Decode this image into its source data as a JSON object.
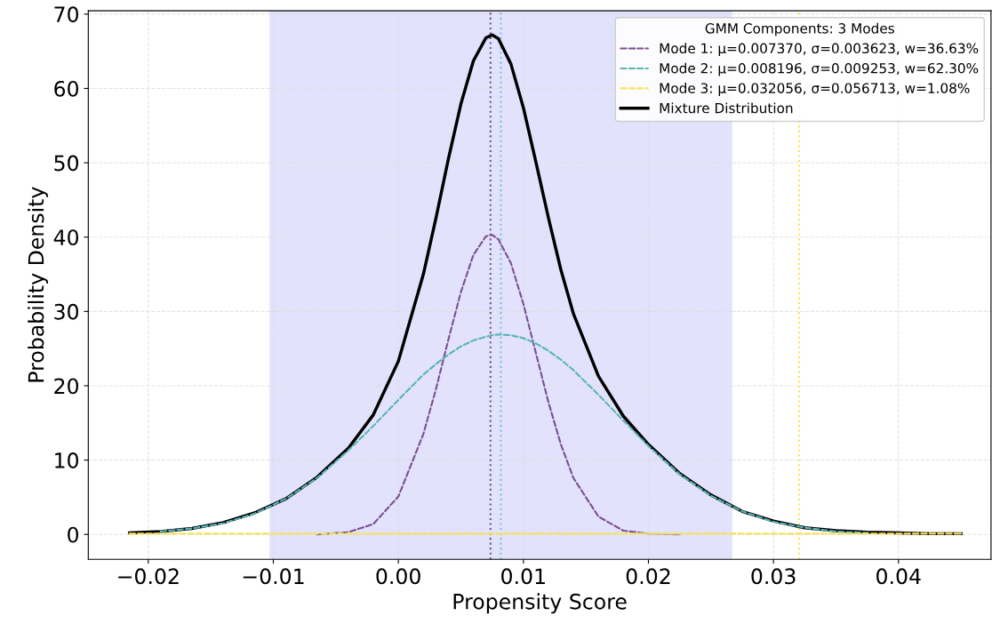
{
  "chart_data": {
    "type": "line",
    "xlabel": "Propensity Score",
    "ylabel": "Probability Density",
    "legend_title": "GMM Components: 3 Modes",
    "x": [
      -0.0215,
      -0.019,
      -0.0165,
      -0.014,
      -0.0115,
      -0.009,
      -0.0065,
      -0.004,
      -0.002,
      0.0,
      0.002,
      0.003,
      0.004,
      0.005,
      0.006,
      0.007,
      0.0075,
      0.008,
      0.009,
      0.01,
      0.011,
      0.012,
      0.013,
      0.014,
      0.016,
      0.018,
      0.02,
      0.0225,
      0.025,
      0.0275,
      0.03,
      0.0325,
      0.035,
      0.0375,
      0.04,
      0.0425,
      0.045
    ],
    "series": [
      {
        "name": "Mode 1: μ=0.007370, σ=0.003623, w=36.63%",
        "color": "#7b4f8e",
        "line_style": "dashed",
        "values": [
          null,
          null,
          null,
          null,
          null,
          null,
          0,
          0.3,
          1.4,
          5.1,
          13.5,
          19.5,
          26.2,
          32.6,
          37.6,
          40.1,
          40.3,
          39.7,
          36.5,
          31.0,
          24.4,
          17.8,
          12.1,
          7.6,
          2.4,
          0.5,
          0.1,
          0,
          null,
          null,
          null,
          null,
          null,
          null,
          null,
          null,
          null
        ]
      },
      {
        "name": "Mode 2: μ=0.008196, σ=0.009253, w=62.30%",
        "color": "#5ab4b4",
        "line_style": "dashed",
        "values": [
          null,
          0.4,
          0.8,
          1.5,
          2.8,
          4.8,
          7.6,
          11.3,
          14.6,
          18.1,
          21.5,
          22.9,
          24.2,
          25.3,
          26.1,
          26.6,
          26.8,
          26.9,
          26.8,
          26.4,
          25.7,
          24.7,
          23.5,
          22.1,
          18.8,
          15.3,
          11.9,
          8.1,
          5.2,
          3.1,
          1.7,
          0.9,
          0.4,
          0.2,
          null,
          null,
          null
        ]
      },
      {
        "name": "Mode 3: μ=0.032056, σ=0.056713, w=1.08%",
        "color": "#f5e35a",
        "line_style": "dashed",
        "values": [
          0.1,
          0.1,
          0.1,
          0.1,
          0.1,
          0.1,
          0.1,
          0.1,
          0.1,
          0.1,
          0.1,
          0.1,
          0.1,
          0.1,
          0.1,
          0.1,
          0.1,
          0.1,
          0.1,
          0.1,
          0.1,
          0.1,
          0.1,
          0.1,
          0.1,
          0.1,
          0.1,
          0.1,
          0.1,
          0.1,
          0.1,
          0.1,
          0.1,
          0.1,
          0.1,
          0.1,
          0.1
        ]
      },
      {
        "name": "Mixture Distribution",
        "color": "#000000",
        "line_style": "solid",
        "values": [
          0.2,
          0.4,
          0.8,
          1.6,
          2.9,
          4.8,
          7.7,
          11.6,
          16.1,
          23.3,
          35.0,
          42.5,
          50.5,
          57.9,
          63.7,
          66.8,
          67.2,
          66.7,
          63.3,
          57.4,
          50.1,
          42.6,
          35.6,
          29.7,
          21.3,
          15.9,
          12.1,
          8.2,
          5.3,
          3.1,
          1.8,
          0.9,
          0.5,
          0.3,
          0.2,
          0.1,
          0.1
        ]
      }
    ],
    "xlim": [
      -0.0248,
      0.0474
    ],
    "ylim": [
      -3.35,
      70.45
    ],
    "xticks": [
      {
        "value": -0.02,
        "label": "−0.02"
      },
      {
        "value": -0.01,
        "label": "−0.01"
      },
      {
        "value": 0.0,
        "label": "0.00"
      },
      {
        "value": 0.01,
        "label": "0.01"
      },
      {
        "value": 0.02,
        "label": "0.02"
      },
      {
        "value": 0.03,
        "label": "0.03"
      },
      {
        "value": 0.04,
        "label": "0.04"
      }
    ],
    "yticks": [
      0,
      10,
      20,
      30,
      40,
      50,
      60,
      70
    ],
    "bands": [
      {
        "axis": "x",
        "from": -0.0103,
        "to": 0.0267,
        "color": "#e2e2fd"
      }
    ],
    "ref_lines": [
      {
        "axis": "x",
        "value": 0.00737,
        "color": "#7b4f8e",
        "line_style": "dotted"
      },
      {
        "axis": "x",
        "value": 0.008196,
        "color": "#7ec0dc",
        "line_style": "dotted"
      },
      {
        "axis": "x",
        "value": 0.032056,
        "color": "#f5e35a",
        "line_style": "dotted"
      }
    ],
    "grid": true,
    "legend": "top right"
  }
}
